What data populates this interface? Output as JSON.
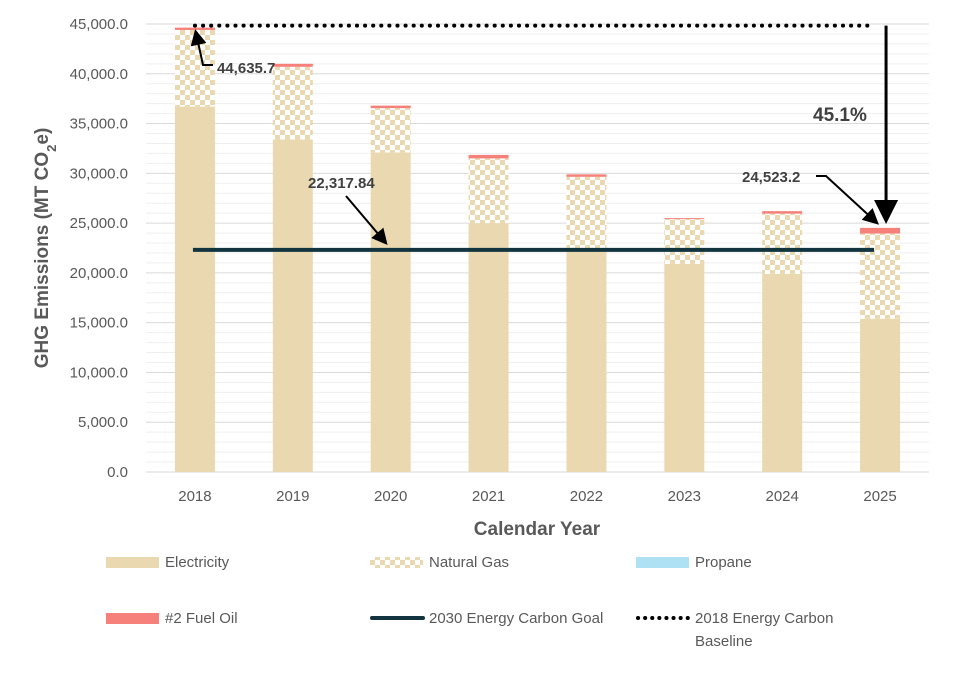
{
  "chart_data": {
    "type": "bar",
    "stacked": true,
    "categories": [
      "2018",
      "2019",
      "2020",
      "2021",
      "2022",
      "2023",
      "2024",
      "2025"
    ],
    "series": [
      {
        "name": "Electricity",
        "color": "#ead9b0",
        "pattern": "solid",
        "values": [
          36700,
          33400,
          32100,
          25000,
          22300,
          20900,
          19900,
          15400
        ]
      },
      {
        "name": "Natural Gas",
        "color": "#ead9b0",
        "pattern": "checker",
        "values": [
          7700,
          7300,
          4450,
          6500,
          7350,
          4500,
          6050,
          8550
        ]
      },
      {
        "name": "Propane",
        "color": "#aee1f4",
        "pattern": "solid",
        "values": [
          0,
          0,
          0,
          0,
          0,
          0,
          0,
          0
        ]
      },
      {
        "name": "#2 Fuel Oil",
        "color": "#f6807a",
        "pattern": "solid",
        "values": [
          235,
          300,
          250,
          350,
          250,
          100,
          250,
          573
        ]
      }
    ],
    "lines": [
      {
        "name": "2030 Energy Carbon Goal",
        "value": 22317.84,
        "color": "#12343f",
        "style": "solid"
      },
      {
        "name": "2018 Energy Carbon Baseline",
        "value": 44635.7,
        "color": "#000000",
        "style": "dotted"
      }
    ],
    "annotations": {
      "baseline_label": "44,635.7",
      "goal_label": "22,317.84",
      "current_label": "24,523.2",
      "reduction_label": "45.1%"
    },
    "xlabel": "Calendar Year",
    "ylabel_parts": {
      "main": "GHG Emissions  (MT CO",
      "sub": "2",
      "tail": "e)"
    },
    "ylim": [
      0,
      45000
    ],
    "yticks": [
      0,
      5000,
      10000,
      15000,
      20000,
      25000,
      30000,
      35000,
      40000,
      45000
    ],
    "grid": true,
    "legend_position": "bottom",
    "legend_labels": [
      "Electricity",
      "Natural Gas",
      "Propane",
      "#2 Fuel Oil",
      "2030 Energy Carbon Goal",
      "2018 Energy Carbon Baseline"
    ]
  }
}
